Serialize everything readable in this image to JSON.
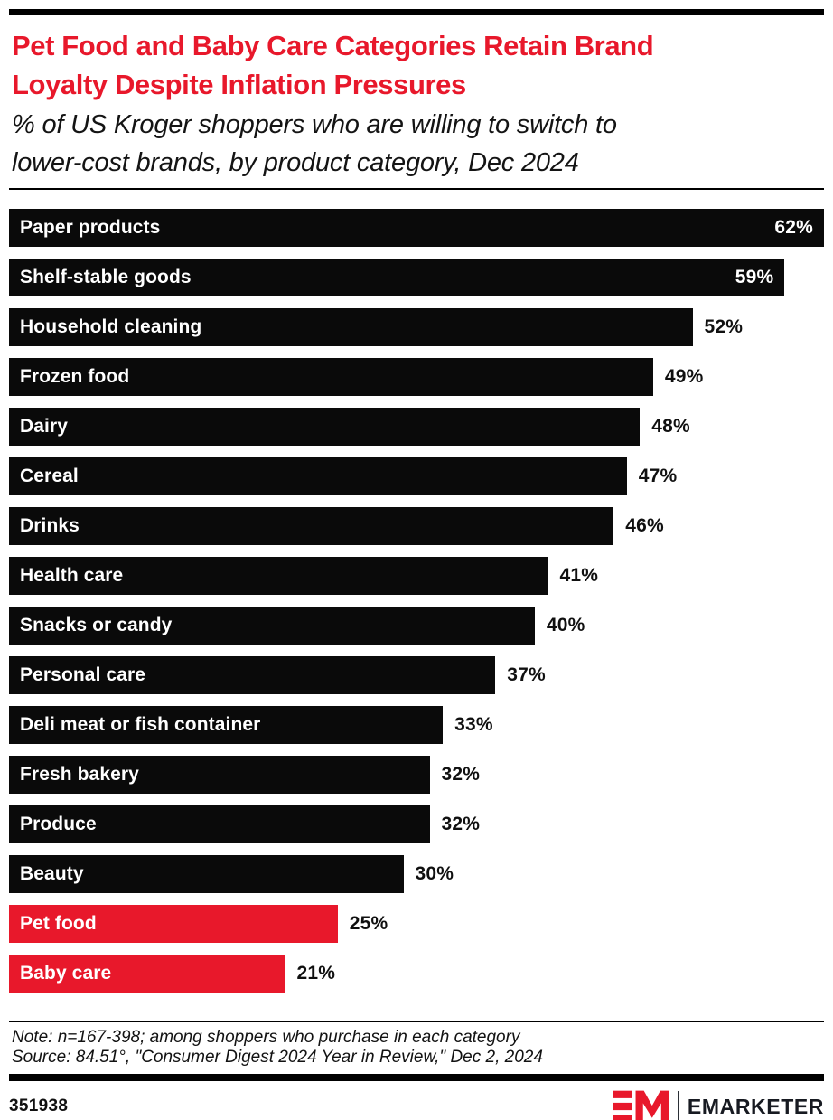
{
  "header": {
    "title_lines": [
      "Pet Food and Baby Care Categories Retain Brand",
      "Loyalty Despite Inflation Pressures"
    ],
    "subtitle_lines": [
      "% of US Kroger shoppers who are willing to switch to",
      "lower-cost brands, by product category, Dec 2024"
    ],
    "accent_color": "#e8182b"
  },
  "chart_data": {
    "type": "bar",
    "orientation": "horizontal",
    "value_unit": "%",
    "xlim": [
      0,
      62
    ],
    "grid": false,
    "bar_color": "#0a0a0a",
    "highlight_color": "#e8182b",
    "bars": [
      {
        "label": "Paper products",
        "value": 62,
        "display_value": "62%",
        "highlight": false,
        "value_inside": true
      },
      {
        "label": "Shelf-stable goods",
        "value": 59,
        "display_value": "59%",
        "highlight": false,
        "value_inside": true
      },
      {
        "label": "Household cleaning",
        "value": 52,
        "display_value": "52%",
        "highlight": false,
        "value_inside": false
      },
      {
        "label": "Frozen food",
        "value": 49,
        "display_value": "49%",
        "highlight": false,
        "value_inside": false
      },
      {
        "label": "Dairy",
        "value": 48,
        "display_value": "48%",
        "highlight": false,
        "value_inside": false
      },
      {
        "label": "Cereal",
        "value": 47,
        "display_value": "47%",
        "highlight": false,
        "value_inside": false
      },
      {
        "label": "Drinks",
        "value": 46,
        "display_value": "46%",
        "highlight": false,
        "value_inside": false
      },
      {
        "label": "Health care",
        "value": 41,
        "display_value": "41%",
        "highlight": false,
        "value_inside": false
      },
      {
        "label": "Snacks or candy",
        "value": 40,
        "display_value": "40%",
        "highlight": false,
        "value_inside": false
      },
      {
        "label": "Personal care",
        "value": 37,
        "display_value": "37%",
        "highlight": false,
        "value_inside": false
      },
      {
        "label": "Deli meat or fish container",
        "value": 33,
        "display_value": "33%",
        "highlight": false,
        "value_inside": false
      },
      {
        "label": "Fresh bakery",
        "value": 32,
        "display_value": "32%",
        "highlight": false,
        "value_inside": false
      },
      {
        "label": "Produce",
        "value": 32,
        "display_value": "32%",
        "highlight": false,
        "value_inside": false
      },
      {
        "label": "Beauty",
        "value": 30,
        "display_value": "30%",
        "highlight": false,
        "value_inside": false
      },
      {
        "label": "Pet food",
        "value": 25,
        "display_value": "25%",
        "highlight": true,
        "value_inside": false
      },
      {
        "label": "Baby care",
        "value": 21,
        "display_value": "21%",
        "highlight": true,
        "value_inside": false
      }
    ]
  },
  "footnote": {
    "note": "Note: n=167-398; among shoppers who purchase in each category",
    "source": "Source: 84.51°, \"Consumer Digest 2024 Year in Review,\" Dec 2, 2024"
  },
  "footer": {
    "chart_id": "351938",
    "brand": "EMARKETER"
  }
}
